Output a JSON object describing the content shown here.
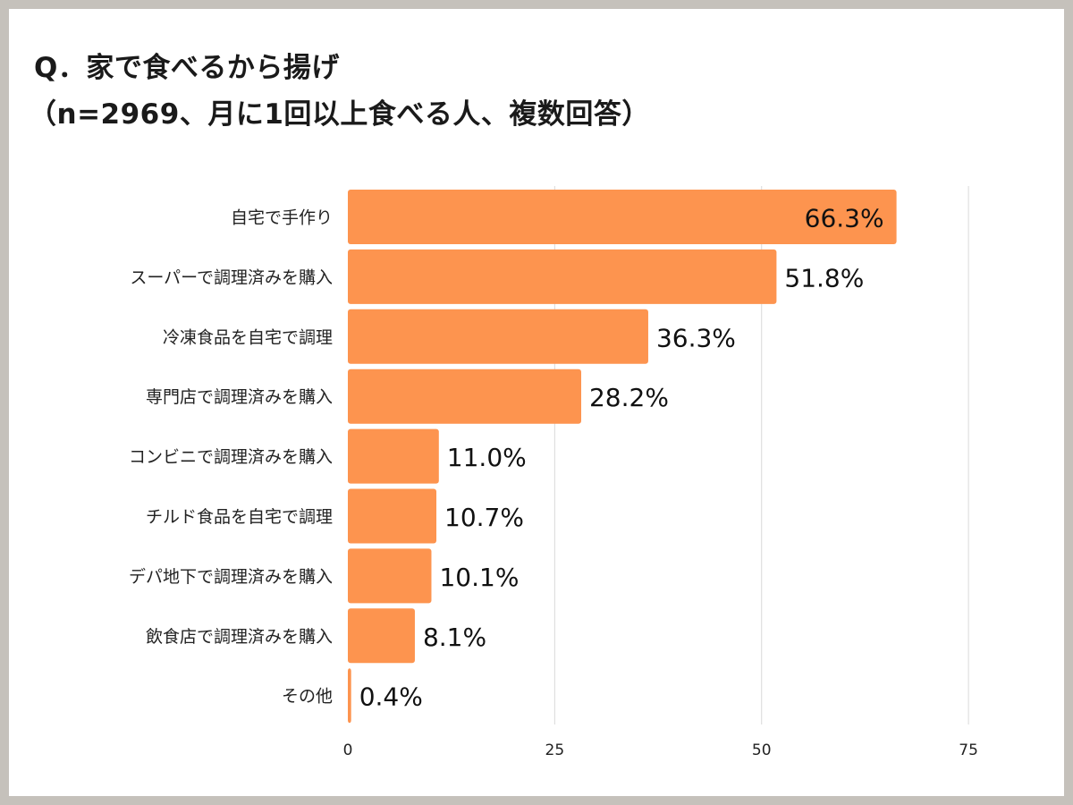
{
  "title_line1": "Q．家で食べるから揚げ",
  "title_line2": "（n=2969、月に1回以上食べる人、複数回答）",
  "colors": {
    "bar": "#fd944f",
    "grid": "#d9d9d9",
    "background": "#ffffff",
    "frame": "#c5c1bb"
  },
  "chart_data": {
    "type": "bar",
    "orientation": "horizontal",
    "categories": [
      "自宅で手作り",
      "スーパーで調理済みを購入",
      "冷凍食品を自宅で調理",
      "専門店で調理済みを購入",
      "コンビニで調理済みを購入",
      "チルド食品を自宅で調理",
      "デパ地下で調理済みを購入",
      "飲食店で調理済みを購入",
      "その他"
    ],
    "values": [
      66.3,
      51.8,
      36.3,
      28.2,
      11.0,
      10.7,
      10.1,
      8.1,
      0.4
    ],
    "data_labels": [
      "66.3%",
      "51.8%",
      "36.3%",
      "28.2%",
      "11.0%",
      "10.7%",
      "10.1%",
      "8.1%",
      "0.4%"
    ],
    "xticks": [
      0,
      25,
      50,
      75
    ],
    "xlim": [
      0,
      75
    ],
    "grid": true,
    "legend": "none"
  }
}
